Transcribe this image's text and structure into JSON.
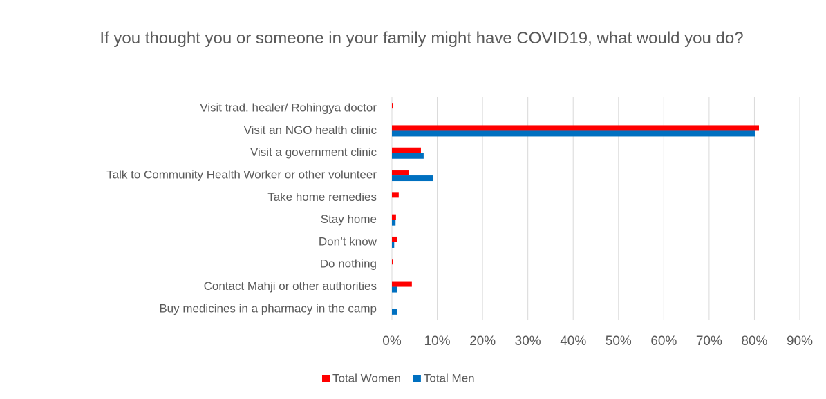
{
  "chart_data": {
    "type": "bar",
    "orientation": "horizontal",
    "title": "If you thought you or someone in your family might have COVID19, what would you do?",
    "categories": [
      "Visit trad. healer/ Rohingya doctor",
      "Visit an NGO health clinic",
      "Visit a government clinic",
      "Talk to Community Health Worker or other volunteer",
      "Take home remedies",
      "Stay home",
      "Don’t know",
      "Do nothing",
      "Contact Mahji or other authorities",
      "Buy medicines in a pharmacy in the camp"
    ],
    "series": [
      {
        "name": "Total Women",
        "color": "#ff0000",
        "values": [
          0.3,
          81.0,
          6.4,
          3.8,
          1.5,
          0.9,
          1.2,
          0.2,
          4.4,
          0
        ]
      },
      {
        "name": "Total Men",
        "color": "#0070c0",
        "values": [
          0,
          80.2,
          7.0,
          9.0,
          0,
          0.8,
          0.5,
          0,
          1.2,
          1.2
        ]
      }
    ],
    "xlim": [
      0,
      90
    ],
    "xticks": [
      {
        "value": 0,
        "label": "0%"
      },
      {
        "value": 10,
        "label": "10%"
      },
      {
        "value": 20,
        "label": "20%"
      },
      {
        "value": 30,
        "label": "30%"
      },
      {
        "value": 40,
        "label": "40%"
      },
      {
        "value": 50,
        "label": "50%"
      },
      {
        "value": 60,
        "label": "60%"
      },
      {
        "value": 70,
        "label": "70%"
      },
      {
        "value": 80,
        "label": "80%"
      },
      {
        "value": 90,
        "label": "90%"
      }
    ],
    "grid": true,
    "legend": "bottom"
  }
}
